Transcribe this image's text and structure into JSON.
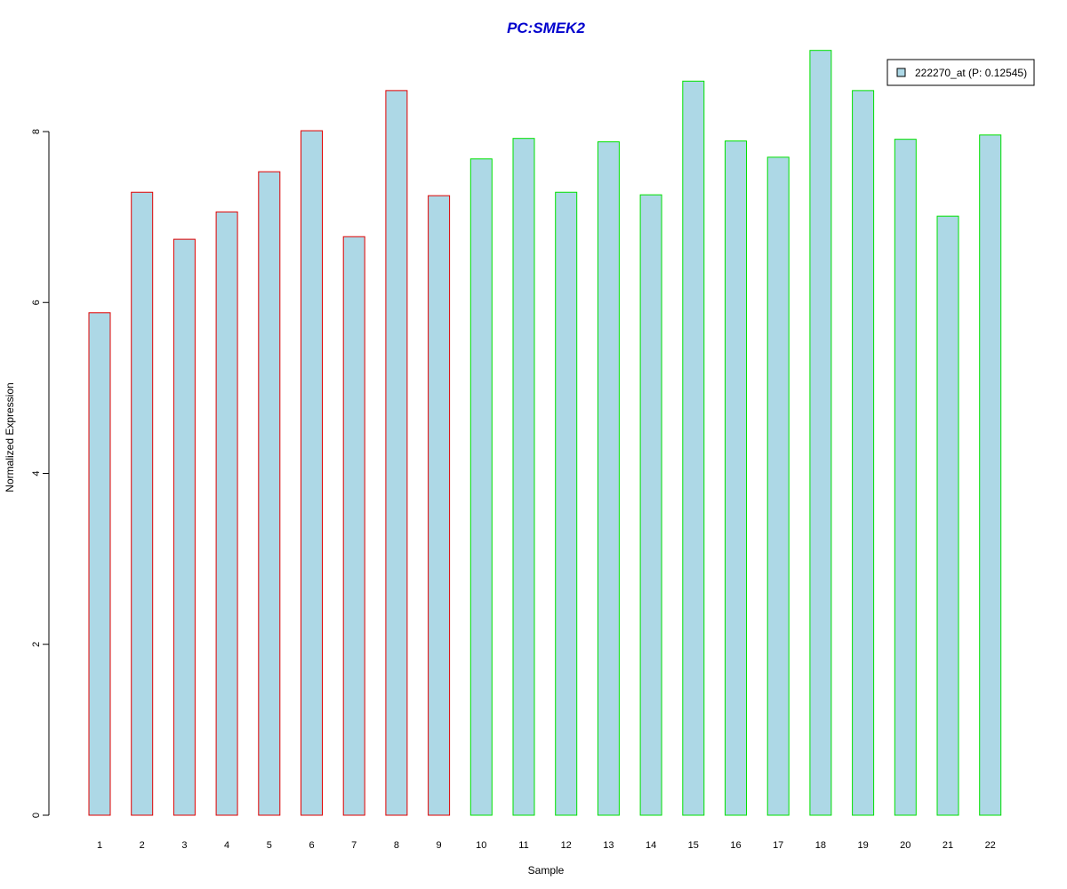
{
  "chart_data": {
    "type": "bar",
    "title": "PC:SMEK2",
    "xlabel": "Sample",
    "ylabel": "Normalized Expression",
    "categories": [
      "1",
      "2",
      "3",
      "4",
      "5",
      "6",
      "7",
      "8",
      "9",
      "10",
      "11",
      "12",
      "13",
      "14",
      "15",
      "16",
      "17",
      "18",
      "19",
      "20",
      "21",
      "22"
    ],
    "series": [
      {
        "name": "222270_at (P: 0.12545)",
        "values": [
          5.88,
          7.29,
          6.74,
          7.06,
          7.53,
          8.01,
          6.77,
          8.48,
          7.25,
          7.68,
          7.92,
          7.29,
          7.88,
          7.26,
          8.59,
          7.89,
          7.7,
          8.95,
          8.48,
          7.91,
          7.01,
          7.96
        ]
      }
    ],
    "group_of_sample": [
      0,
      0,
      0,
      0,
      0,
      0,
      0,
      0,
      0,
      1,
      1,
      1,
      1,
      1,
      1,
      1,
      1,
      1,
      1,
      1,
      1,
      1
    ],
    "ylim": [
      0,
      9
    ],
    "yticks": [
      "0",
      "2",
      "4",
      "6",
      "8"
    ],
    "grid": false,
    "legend_position": "top-right"
  },
  "colors": {
    "title": "#0000cd",
    "bar_fill": "#add8e6",
    "group_borders": [
      "#e00000",
      "#00e000"
    ],
    "axis": "#000000",
    "legend_border": "#000000"
  }
}
